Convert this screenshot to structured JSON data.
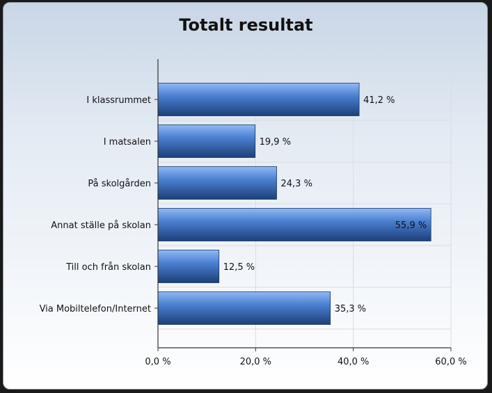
{
  "chart_data": {
    "type": "bar",
    "orientation": "horizontal",
    "title": "Totalt resultat",
    "categories": [
      "I klassrummet",
      "I matsalen",
      "På skolgården",
      "Annat ställe på skolan",
      "Till och från skolan",
      "Via Mobiltelefon/Internet"
    ],
    "values": [
      41.2,
      19.9,
      24.3,
      55.9,
      12.5,
      35.3
    ],
    "value_labels": [
      "41,2 %",
      "19,9 %",
      "24,3 %",
      "55,9 %",
      "12,5 %",
      "35,3 %"
    ],
    "xlim": [
      0,
      60
    ],
    "xticks": [
      0,
      20,
      40,
      60
    ],
    "xtick_labels": [
      "0,0 %",
      "20,0 %",
      "40,0 %",
      "60,0 %"
    ],
    "xlabel": "",
    "ylabel": "",
    "grid": true,
    "legend": "none"
  },
  "colors": {
    "bar_light": "#8fb9f4",
    "bar_mid": "#4a7fd0",
    "bar_dark": "#1d3f77",
    "grid": "#d9dde3",
    "axis": "#333333"
  }
}
